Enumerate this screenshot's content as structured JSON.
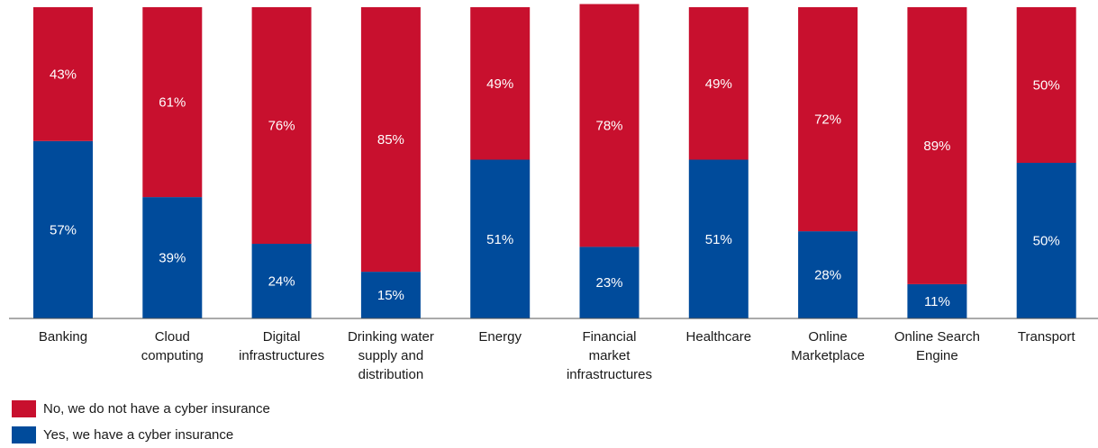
{
  "chart_data": {
    "type": "bar",
    "stacked": true,
    "percent": true,
    "categories": [
      [
        "Banking"
      ],
      [
        "Cloud",
        "computing"
      ],
      [
        "Digital",
        "infrastructures"
      ],
      [
        "Drinking water",
        "supply and",
        "distribution"
      ],
      [
        "Energy"
      ],
      [
        "Financial",
        "market",
        "infrastructures"
      ],
      [
        "Healthcare"
      ],
      [
        "Online",
        "Marketplace"
      ],
      [
        "Online Search",
        "Engine"
      ],
      [
        "Transport"
      ]
    ],
    "series": [
      {
        "name": "Yes, we have a cyber insurance",
        "color": "#004b9b",
        "values": [
          57,
          39,
          24,
          15,
          51,
          23,
          51,
          28,
          11,
          50
        ]
      },
      {
        "name": "No, we do not have a cyber insurance",
        "color": "#c8102e",
        "values": [
          43,
          61,
          76,
          85,
          49,
          78,
          49,
          72,
          89,
          50
        ]
      }
    ],
    "value_format": "{v}%",
    "ylim": [
      0,
      100
    ],
    "grid": false,
    "legend_position": "bottom-left"
  },
  "legend": [
    {
      "label": "No, we do not have a cyber insurance",
      "color": "#c8102e"
    },
    {
      "label": "Yes, we have a cyber insurance",
      "color": "#004b9b"
    }
  ]
}
